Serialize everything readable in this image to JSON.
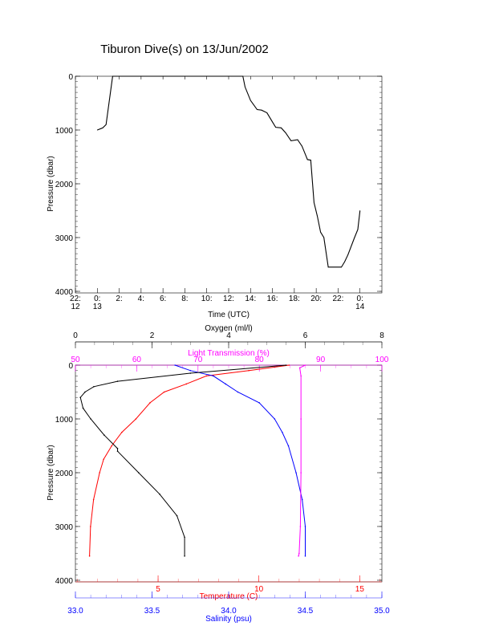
{
  "title": "Tiburon Dive(s) on 13/Jun/2002",
  "chart_data": [
    {
      "type": "line",
      "name": "pressure-vs-time",
      "xlabel": "Time (UTC)",
      "ylabel": "Pressure (dbar)",
      "xlim_hours": [
        -2,
        26
      ],
      "ylim": [
        4000,
        0
      ],
      "xticks": [
        {
          "h": -2,
          "label": [
            "22:",
            "12"
          ]
        },
        {
          "h": 0,
          "label": [
            "0:",
            "13"
          ]
        },
        {
          "h": 2,
          "label": [
            "2:",
            ""
          ]
        },
        {
          "h": 4,
          "label": [
            "4:",
            ""
          ]
        },
        {
          "h": 6,
          "label": [
            "6:",
            ""
          ]
        },
        {
          "h": 8,
          "label": [
            "8:",
            ""
          ]
        },
        {
          "h": 10,
          "label": [
            "10:",
            ""
          ]
        },
        {
          "h": 12,
          "label": [
            "12:",
            ""
          ]
        },
        {
          "h": 14,
          "label": [
            "14:",
            ""
          ]
        },
        {
          "h": 16,
          "label": [
            "16:",
            ""
          ]
        },
        {
          "h": 18,
          "label": [
            "18:",
            ""
          ]
        },
        {
          "h": 20,
          "label": [
            "20:",
            ""
          ]
        },
        {
          "h": 22,
          "label": [
            "22:",
            ""
          ]
        },
        {
          "h": 24,
          "label": [
            "0:",
            "14"
          ]
        }
      ],
      "yticks": [
        0,
        1000,
        2000,
        3000,
        4000
      ],
      "series": [
        {
          "name": "pressure",
          "color": "#000000",
          "x": [
            0,
            0.5,
            0.8,
            1.0,
            1.4,
            13.3,
            13.5,
            14.0,
            14.6,
            15.0,
            15.5,
            16.0,
            16.3,
            16.8,
            17.2,
            17.7,
            18.3,
            18.7,
            19.2,
            19.5,
            19.8,
            20.1,
            20.4,
            20.7,
            21.1,
            22.3,
            22.6,
            22.9,
            23.5,
            23.8,
            24.0
          ],
          "y": [
            1000,
            960,
            900,
            600,
            0,
            0,
            200,
            450,
            620,
            630,
            680,
            850,
            950,
            960,
            1050,
            1200,
            1180,
            1300,
            1550,
            1560,
            2350,
            2600,
            2900,
            3000,
            3550,
            3550,
            3450,
            3320,
            3000,
            2850,
            2500
          ]
        }
      ]
    },
    {
      "type": "scatter",
      "name": "ctd-profiles",
      "ylabel": "Pressure (dbar)",
      "ylim": [
        4000,
        0
      ],
      "yticks": [
        0,
        1000,
        2000,
        3000,
        4000
      ],
      "axes": {
        "oxygen": {
          "label": "Oxygen (ml/l)",
          "lim": [
            0,
            8
          ],
          "ticks": [
            0,
            2,
            4,
            6,
            8
          ],
          "color": "#000000",
          "position": "top"
        },
        "light": {
          "label": "Light Transmission (%)",
          "lim": [
            50,
            100
          ],
          "ticks": [
            50,
            60,
            70,
            80,
            90,
            100
          ],
          "color": "#ff00ff",
          "position": "top"
        },
        "temperature": {
          "label": "Temperature (C)",
          "lim": [
            0.9,
            16.1
          ],
          "ticks": [
            5,
            10,
            15
          ],
          "color": "#ff0000",
          "position": "bottom"
        },
        "salinity": {
          "label": "Salinity (psu)",
          "lim": [
            33.0,
            35.0
          ],
          "ticks": [
            "33.0",
            "33.5",
            "34.0",
            "34.5",
            "35.0"
          ],
          "color": "#0000ff",
          "position": "bottom"
        }
      },
      "series": [
        {
          "name": "Temperature",
          "axis": "temperature",
          "color": "#ff0000",
          "p": [
            0,
            100,
            200,
            350,
            500,
            700,
            1000,
            1250,
            1500,
            1750,
            2000,
            2500,
            3000,
            3550
          ],
          "v": [
            11.5,
            9.5,
            7.4,
            6.4,
            5.3,
            4.6,
            3.9,
            3.2,
            2.7,
            2.3,
            2.1,
            1.8,
            1.65,
            1.6
          ]
        },
        {
          "name": "Salinity",
          "axis": "salinity",
          "color": "#0000ff",
          "p": [
            0,
            100,
            200,
            350,
            500,
            700,
            1000,
            1250,
            1500,
            2000,
            2500,
            3000,
            3550
          ],
          "v": [
            33.65,
            33.75,
            33.9,
            33.98,
            34.06,
            34.2,
            34.3,
            34.35,
            34.39,
            34.44,
            34.48,
            34.5,
            34.5
          ]
        },
        {
          "name": "Oxygen",
          "axis": "oxygen",
          "color": "#000000",
          "p": [
            0,
            150,
            300,
            400,
            500,
            600,
            800,
            1000,
            1300,
            1550,
            1600,
            2000,
            2400,
            2800,
            3200,
            3550
          ],
          "v": [
            5.5,
            3.0,
            1.1,
            0.48,
            0.25,
            0.13,
            0.2,
            0.4,
            0.75,
            1.1,
            1.1,
            1.65,
            2.2,
            2.65,
            2.85,
            2.85
          ]
        },
        {
          "name": "Light Transmission",
          "axis": "light",
          "color": "#ff00ff",
          "p": [
            0,
            50,
            200,
            1000,
            2000,
            3000,
            3500,
            3550
          ],
          "v": [
            87.5,
            86.6,
            86.8,
            86.8,
            86.8,
            86.7,
            86.5,
            86.4
          ]
        }
      ]
    }
  ]
}
